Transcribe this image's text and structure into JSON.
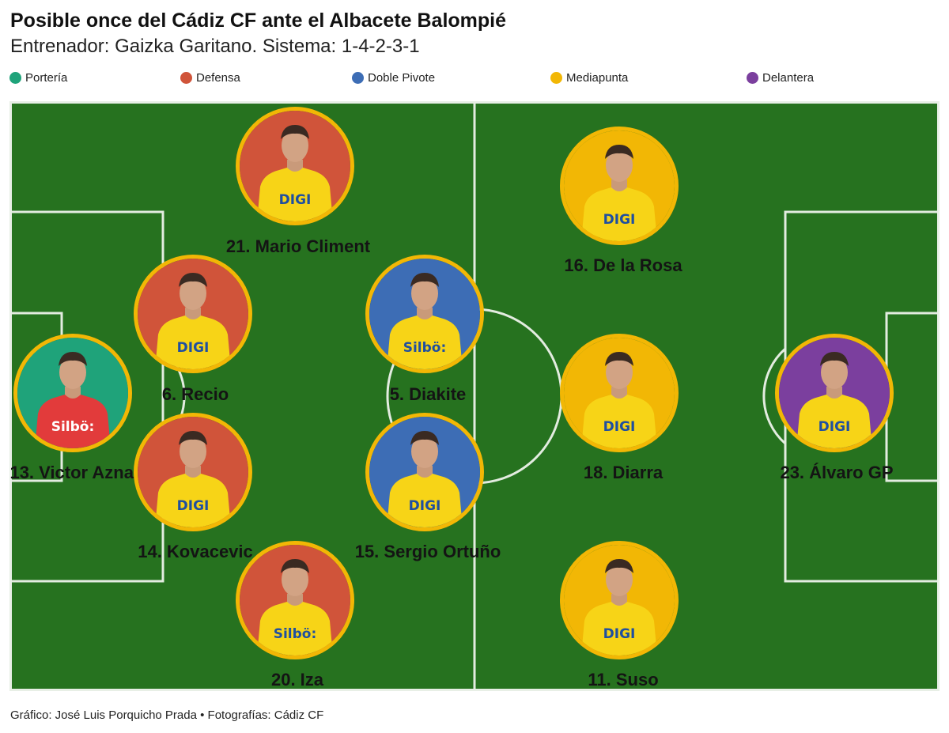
{
  "header": {
    "title": "Posible once del Cádiz CF ante el Albacete Balompié",
    "subtitle": "Entrenador: Gaizka Garitano. Sistema: 1-4-2-3-1"
  },
  "legend": [
    {
      "label": "Portería",
      "color": "#1fa37a"
    },
    {
      "label": "Defensa",
      "color": "#d0543a"
    },
    {
      "label": "Doble Pivote",
      "color": "#3d6db5"
    },
    {
      "label": "Mediapunta",
      "color": "#f2b705"
    },
    {
      "label": "Delantera",
      "color": "#7b3f9e"
    }
  ],
  "colors": {
    "ring": "#f2b705",
    "pitch": "#26721f",
    "jersey": "#f7d417",
    "keeper_jersey": "#e23b3b",
    "sponsor_text": "#1f4fa0"
  },
  "players": [
    {
      "label": "21. Mario Climent",
      "position": "Defensa",
      "sponsor": "DIGI"
    },
    {
      "label": "6. Recio",
      "position": "Defensa",
      "sponsor": "DIGI"
    },
    {
      "label": "13. Victor Aznar",
      "position": "Portería",
      "sponsor": "Silbö:"
    },
    {
      "label": "14. Kovacevic",
      "position": "Defensa",
      "sponsor": "DIGI"
    },
    {
      "label": "20. Iza",
      "position": "Defensa",
      "sponsor": "Silbö:"
    },
    {
      "label": "5. Diakite",
      "position": "Doble Pivote",
      "sponsor": "Silbö:"
    },
    {
      "label": "15. Sergio Ortuño",
      "position": "Doble Pivote",
      "sponsor": "DIGI"
    },
    {
      "label": "16. De la Rosa",
      "position": "Mediapunta",
      "sponsor": "DIGI"
    },
    {
      "label": "18. Diarra",
      "position": "Mediapunta",
      "sponsor": "DIGI"
    },
    {
      "label": "11. Suso",
      "position": "Mediapunta",
      "sponsor": "DIGI"
    },
    {
      "label": "23. Álvaro GP",
      "position": "Delantera",
      "sponsor": "DIGI"
    }
  ],
  "footer": {
    "credit": "Gráfico: José Luis Porquicho Prada • Fotografías: Cádiz CF"
  }
}
